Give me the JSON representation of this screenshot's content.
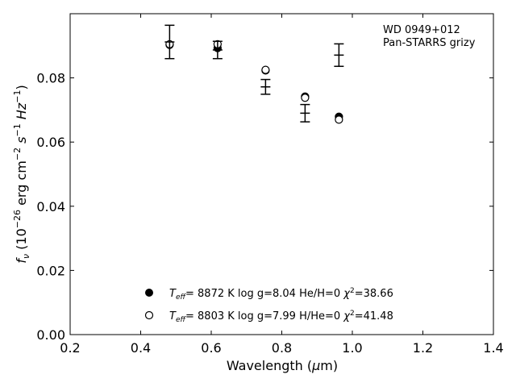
{
  "chart_data": {
    "type": "scatter",
    "annotations": [
      "WD 0949+012",
      "Pan-STARRS grizy"
    ],
    "xlabel_html": [
      "Wavelength (",
      "μ",
      "m)"
    ],
    "ylabel_parts": {
      "f": "f",
      "nu": "ν",
      "rest": " (10",
      "exp": "−26",
      "unit": " erg cm",
      "m2": "−2",
      "s": " s",
      "m1": "−1",
      "hz": " Hz",
      "m1b": "−1",
      "close": ")"
    },
    "xlim": [
      0.2,
      1.4
    ],
    "ylim": [
      0.0,
      0.1
    ],
    "xticks": [
      0.2,
      0.4,
      0.6,
      0.8,
      1.0,
      1.2,
      1.4
    ],
    "xtick_labels": [
      "0.2",
      "0.4",
      "0.6",
      "0.8",
      "1.0",
      "1.2",
      "1.4"
    ],
    "yticks": [
      0.0,
      0.02,
      0.04,
      0.06,
      0.08
    ],
    "ytick_labels": [
      "0.00",
      "0.02",
      "0.04",
      "0.06",
      "0.08"
    ],
    "grid": false,
    "legend_position": "lower-center",
    "observed": {
      "x": [
        0.482,
        0.618,
        0.754,
        0.866,
        0.962
      ],
      "y": [
        0.0912,
        0.0887,
        0.0772,
        0.069,
        0.0871
      ],
      "yerr": [
        0.0052,
        0.0027,
        0.0023,
        0.0027,
        0.0035
      ]
    },
    "series": [
      {
        "name_parts": {
          "T": "T",
          "sub": "eff",
          "text": "=  8872 K  log g=8.04  He/H=0  ",
          "chi": "χ",
          "sup": "2",
          "tail": "=38.66"
        },
        "marker": "filled-circle",
        "x": [
          0.482,
          0.618,
          0.754,
          0.866,
          0.962
        ],
        "y": [
          0.0903,
          0.0893,
          0.0823,
          0.0742,
          0.0679
        ]
      },
      {
        "name_parts": {
          "T": "T",
          "sub": "eff",
          "text": "=  8803 K  log g=7.99  H/He=0  ",
          "chi": "χ",
          "sup": "2",
          "tail": "=41.48"
        },
        "marker": "open-circle",
        "x": [
          0.482,
          0.618,
          0.754,
          0.866,
          0.962
        ],
        "y": [
          0.0905,
          0.0905,
          0.0825,
          0.0738,
          0.067
        ]
      }
    ]
  }
}
